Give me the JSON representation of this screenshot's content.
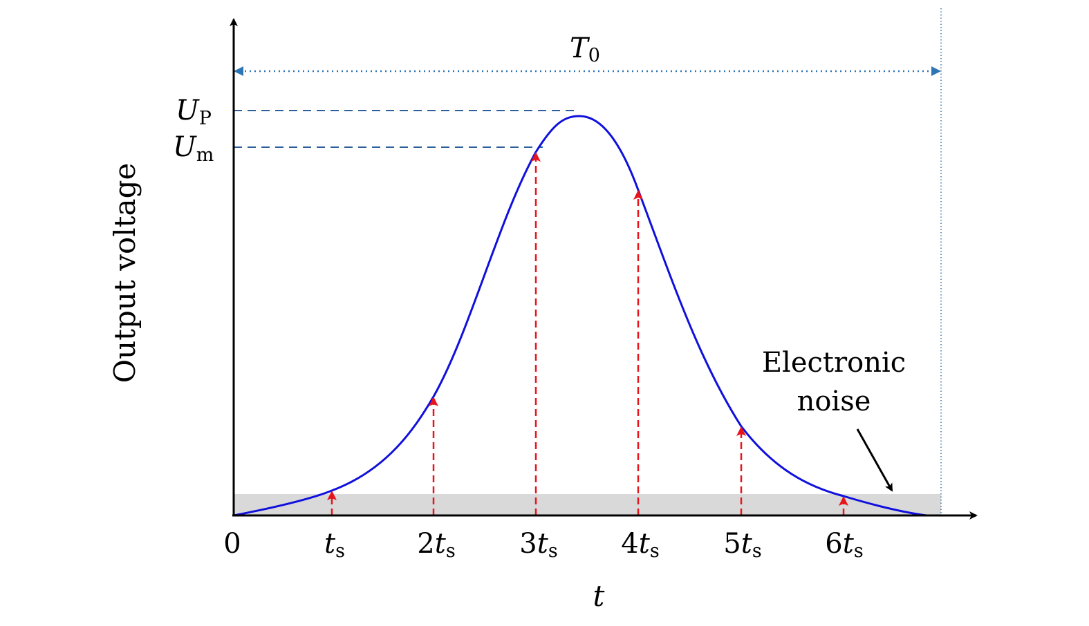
{
  "axes": {
    "y_label": "Output voltage",
    "x_label": "t",
    "origin_label": "0"
  },
  "period": {
    "symbol": "T",
    "subscript": "0"
  },
  "levels": [
    {
      "symbol": "U",
      "subscript": "P"
    },
    {
      "symbol": "U",
      "subscript": "m"
    }
  ],
  "ticks": [
    {
      "coef": "",
      "sym": "t",
      "sub": "s"
    },
    {
      "coef": "2",
      "sym": "t",
      "sub": "s"
    },
    {
      "coef": "3",
      "sym": "t",
      "sub": "s"
    },
    {
      "coef": "4",
      "sym": "t",
      "sub": "s"
    },
    {
      "coef": "5",
      "sym": "t",
      "sub": "s"
    },
    {
      "coef": "6",
      "sym": "t",
      "sub": "s"
    }
  ],
  "noise_label": [
    "Electronic",
    "noise"
  ],
  "colors": {
    "pulse": "#1010dd",
    "samples": "#e8141c",
    "period_arrow": "#2e75b6",
    "level_lines": "#2e5f9a",
    "noise_band": "#d9d9d9",
    "axis": "#000000"
  }
}
